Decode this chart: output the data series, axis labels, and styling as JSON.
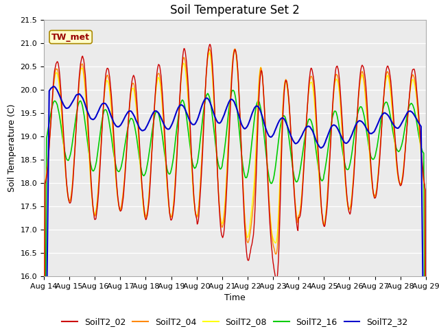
{
  "title": "Soil Temperature Set 2",
  "xlabel": "Time",
  "ylabel": "Soil Temperature (C)",
  "annotation": "TW_met",
  "ylim": [
    16.0,
    21.5
  ],
  "n_days": 15,
  "x_tick_labels": [
    "Aug 14",
    "Aug 15",
    "Aug 16",
    "Aug 17",
    "Aug 18",
    "Aug 19",
    "Aug 20",
    "Aug 21",
    "Aug 22",
    "Aug 23",
    "Aug 24",
    "Aug 25",
    "Aug 26",
    "Aug 27",
    "Aug 28",
    "Aug 29"
  ],
  "colors": {
    "SoilT2_02": "#cc0000",
    "SoilT2_04": "#ff8800",
    "SoilT2_08": "#ffff00",
    "SoilT2_16": "#00cc00",
    "SoilT2_32": "#0000cc"
  },
  "plot_bg": "#ebebeb",
  "title_fontsize": 12,
  "axis_fontsize": 9,
  "tick_fontsize": 8,
  "legend_fontsize": 9
}
